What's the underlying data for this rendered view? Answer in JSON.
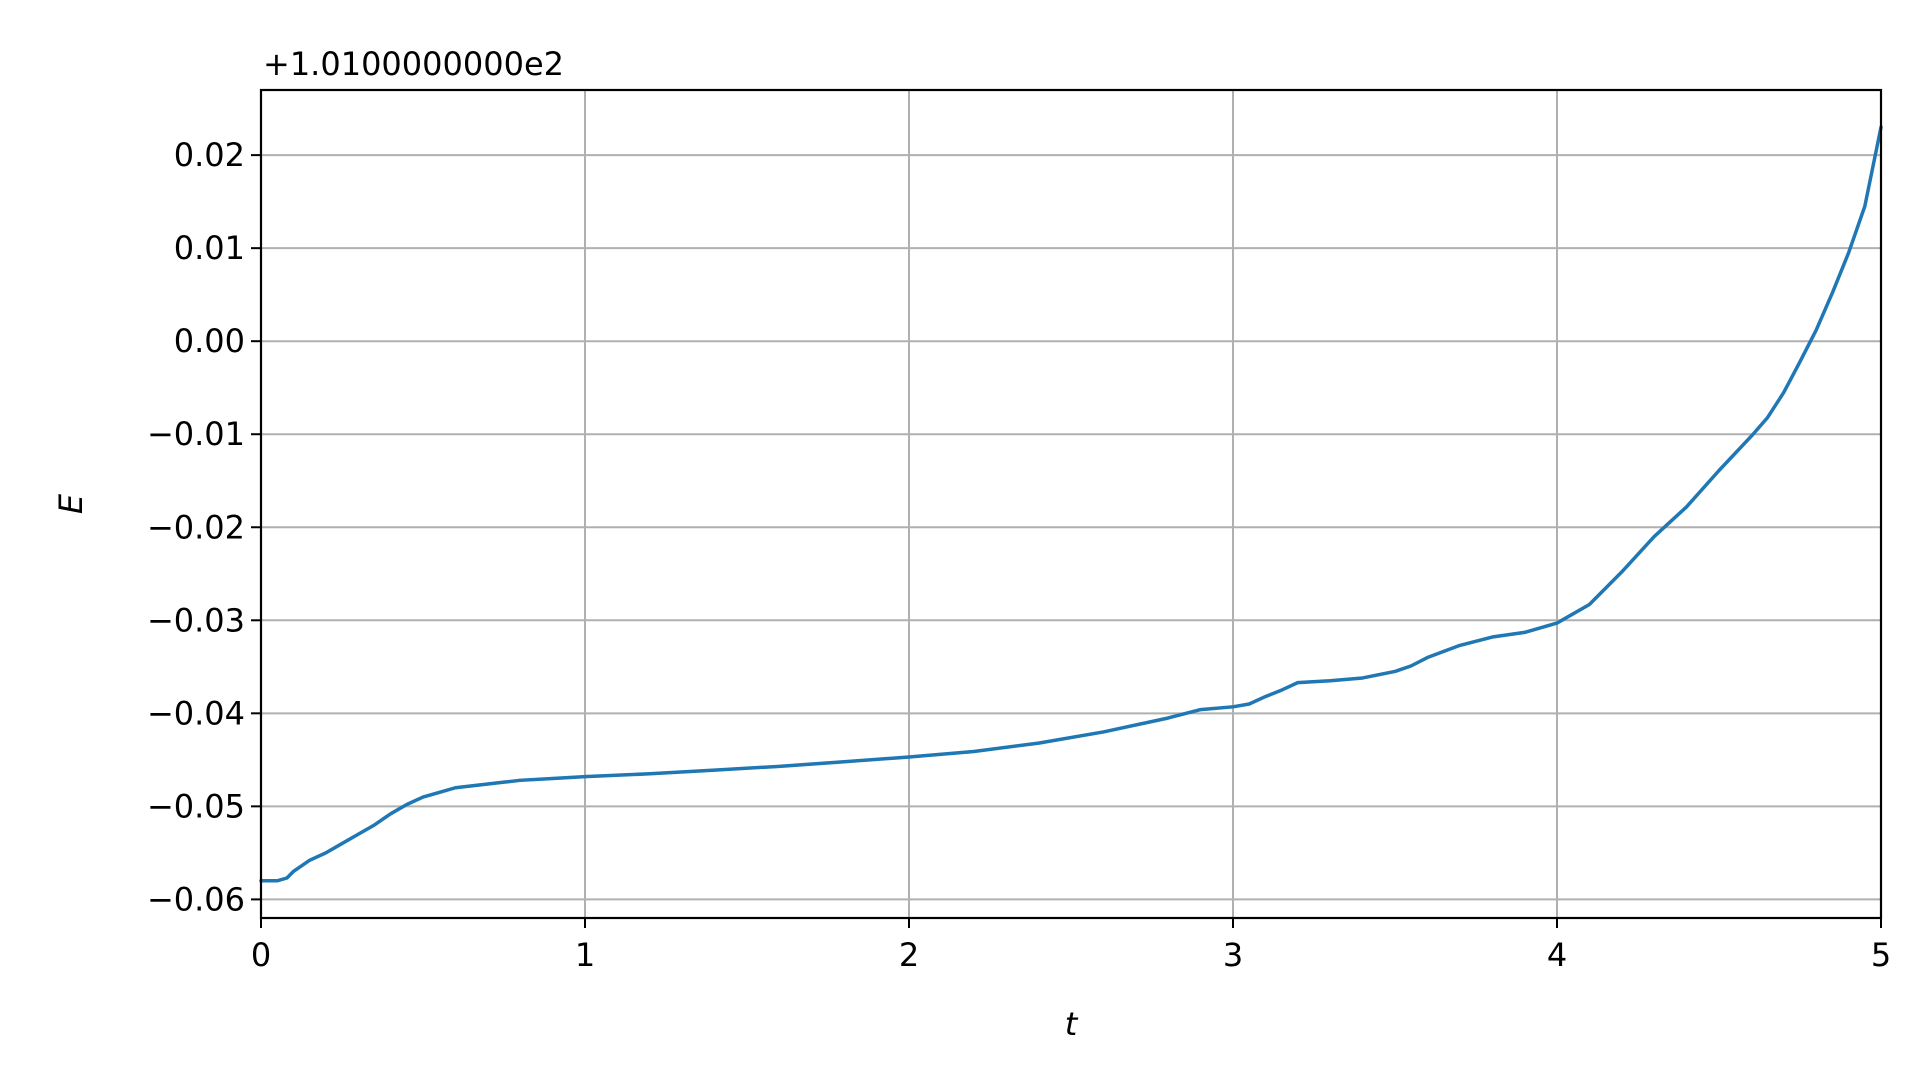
{
  "chart_data": {
    "type": "line",
    "title": "",
    "xlabel": "t",
    "ylabel": "E",
    "y_offset_label": "+1.0100000000e2",
    "xlim": [
      0,
      5
    ],
    "ylim": [
      -0.062,
      0.027
    ],
    "grid": true,
    "x_ticks": [
      0,
      1,
      2,
      3,
      4,
      5
    ],
    "x_tick_labels": [
      "0",
      "1",
      "2",
      "3",
      "4",
      "5"
    ],
    "y_ticks": [
      -0.06,
      -0.05,
      -0.04,
      -0.03,
      -0.02,
      -0.01,
      0.0,
      0.01,
      0.02
    ],
    "y_tick_labels": [
      "−0.06",
      "−0.05",
      "−0.04",
      "−0.03",
      "−0.02",
      "−0.01",
      "0.00",
      "0.01",
      "0.02"
    ],
    "line_color": "#1f77b4",
    "series": [
      {
        "x": [
          0,
          0.05,
          0.08,
          0.1,
          0.15,
          0.2,
          0.25,
          0.3,
          0.35,
          0.4,
          0.45,
          0.5,
          0.55,
          0.6,
          0.65,
          0.7,
          0.75,
          0.8,
          0.9,
          1.0,
          1.2,
          1.4,
          1.6,
          1.8,
          2.0,
          2.2,
          2.4,
          2.6,
          2.8,
          2.9,
          3.0,
          3.05,
          3.1,
          3.15,
          3.2,
          3.3,
          3.4,
          3.5,
          3.55,
          3.6,
          3.7,
          3.8,
          3.9,
          4.0,
          4.1,
          4.2,
          4.3,
          4.4,
          4.5,
          4.6,
          4.65,
          4.7,
          4.75,
          4.8,
          4.85,
          4.9,
          4.95,
          5.0
        ],
        "y": [
          -0.058,
          -0.058,
          -0.0577,
          -0.057,
          -0.0558,
          -0.055,
          -0.054,
          -0.053,
          -0.052,
          -0.0508,
          -0.0498,
          -0.049,
          -0.0485,
          -0.048,
          -0.0478,
          -0.0476,
          -0.0474,
          -0.0472,
          -0.047,
          -0.0468,
          -0.0465,
          -0.0461,
          -0.0457,
          -0.0452,
          -0.0447,
          -0.0441,
          -0.0432,
          -0.042,
          -0.0405,
          -0.0396,
          -0.0393,
          -0.039,
          -0.0382,
          -0.0375,
          -0.0367,
          -0.0365,
          -0.0362,
          -0.0355,
          -0.0349,
          -0.034,
          -0.0327,
          -0.0318,
          -0.0313,
          -0.0303,
          -0.0283,
          -0.0248,
          -0.021,
          -0.0178,
          -0.0139,
          -0.0102,
          -0.0082,
          -0.0055,
          -0.0022,
          0.0012,
          0.0052,
          0.0095,
          0.0145,
          0.023
        ]
      }
    ]
  }
}
